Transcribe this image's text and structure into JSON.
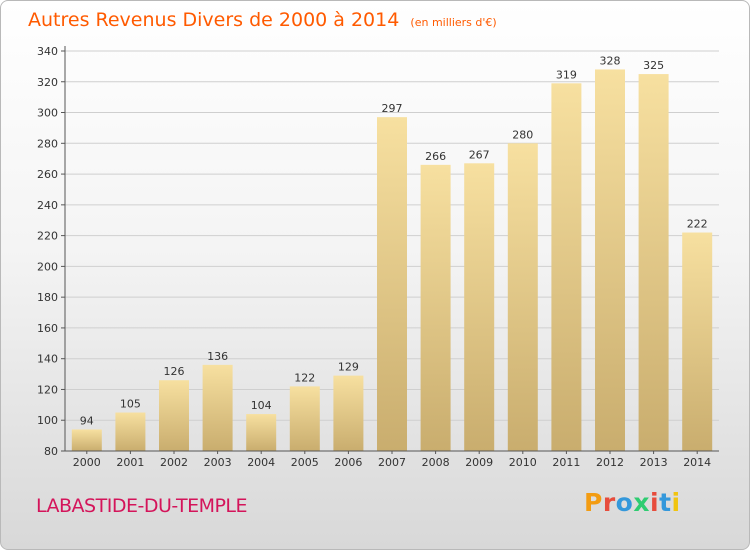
{
  "title": "Autres Revenus Divers de 2000 à 2014",
  "subtitle": "(en milliers d'€)",
  "place": "LABASTIDE-DU-TEMPLE",
  "brand": "Proxiti",
  "colors": {
    "title": "#ff5a00",
    "place": "#d4145a",
    "bar_light": "#f7e0a0",
    "bar_dark": "#c9ad6e",
    "brand_letters": [
      "#f39c12",
      "#e74c3c",
      "#3498db",
      "#2ecc71",
      "#e74c3c",
      "#3498db",
      "#f1c40f"
    ]
  },
  "chart_data": {
    "type": "bar",
    "title": "Autres Revenus Divers de 2000 à 2014",
    "subtitle": "(en milliers d'€)",
    "xlabel": "",
    "ylabel": "",
    "categories": [
      "2000",
      "2001",
      "2002",
      "2003",
      "2004",
      "2005",
      "2006",
      "2007",
      "2008",
      "2009",
      "2010",
      "2011",
      "2012",
      "2013",
      "2014"
    ],
    "values": [
      94,
      105,
      126,
      136,
      104,
      122,
      129,
      297,
      266,
      267,
      280,
      319,
      328,
      325,
      222
    ],
    "ylim": [
      80,
      340
    ],
    "yticks": [
      80,
      100,
      120,
      140,
      160,
      180,
      200,
      220,
      240,
      260,
      280,
      300,
      320,
      340
    ],
    "grid": true,
    "legend": "none"
  }
}
